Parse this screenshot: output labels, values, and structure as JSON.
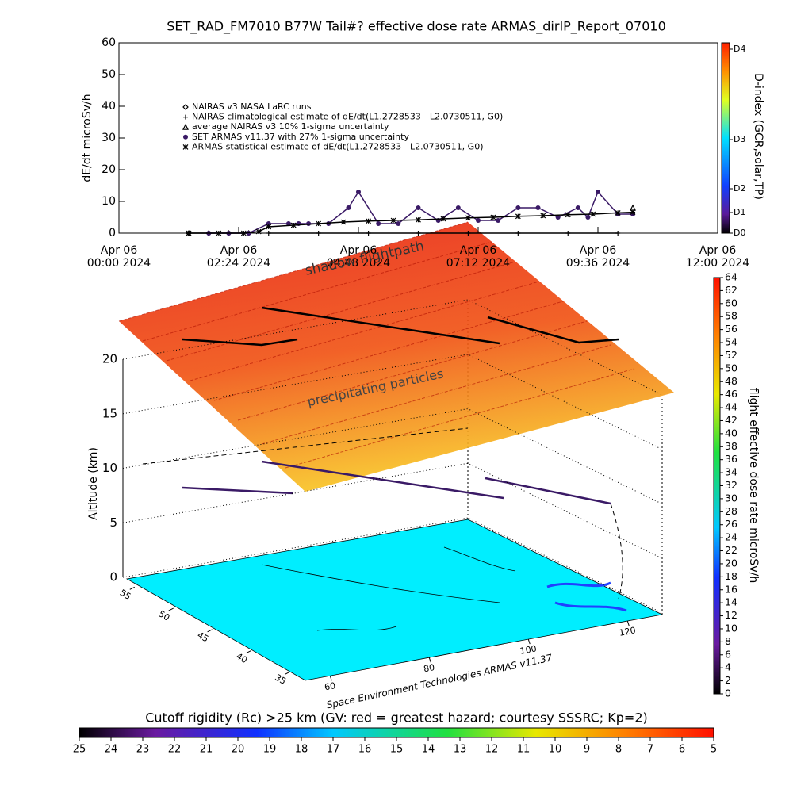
{
  "chart_data": [
    {
      "type": "scatter",
      "title": "SET_RAD_FM7010  B77W Tail#? effective dose rate ARMAS_dirIP_Report_07010",
      "ylabel": "dE/dt microSv/h",
      "xlim": [
        0,
        12
      ],
      "ylim": [
        0,
        60
      ],
      "xticks": [
        {
          "value": 0,
          "label": "Apr 06\n00:00 2024"
        },
        {
          "value": 2.4,
          "label": "Apr 06\n02:24 2024"
        },
        {
          "value": 4.8,
          "label": "Apr 06\n04:48 2024"
        },
        {
          "value": 7.2,
          "label": "Apr 06\n07:12 2024"
        },
        {
          "value": 9.6,
          "label": "Apr 06\n09:36 2024"
        },
        {
          "value": 12,
          "label": "Apr 06\n12:00 2024"
        }
      ],
      "yticks": [
        0,
        10,
        20,
        30,
        40,
        50,
        60
      ],
      "y2label": "D-index (GCR,solar,TP)",
      "y2ticks": [
        {
          "value": 0,
          "label": "D0"
        },
        {
          "value": 6.5,
          "label": "D1"
        },
        {
          "value": 14,
          "label": "D2"
        },
        {
          "value": 29.5,
          "label": "D3"
        },
        {
          "value": 58,
          "label": "D4"
        }
      ],
      "series": [
        {
          "name": "NAIRAS v3 NASA LaRC runs",
          "marker": "diamond",
          "color": "#000000",
          "x": [
            1.4,
            1.8,
            2.2,
            2.6
          ],
          "values": [
            0,
            0,
            0,
            0
          ]
        },
        {
          "name": "NAIRAS climatological estimate of dE/dt(L1.2728533 - L2.0730511, G0)",
          "marker": "plus",
          "color": "#000000",
          "x": [
            3.0,
            4.0,
            5.0,
            6.0,
            7.0,
            8.0,
            9.0,
            10.0
          ],
          "values": [
            0,
            0,
            0,
            0,
            0,
            0,
            0,
            0
          ]
        },
        {
          "name": "average NAIRAS v3 10% 1-sigma uncertainty",
          "marker": "triangle",
          "color": "#000000",
          "x": [
            10.3
          ],
          "values": [
            8
          ]
        },
        {
          "name": "SET ARMAS v11.37 with 27% 1-sigma uncertainty",
          "marker": "circle",
          "color": "#3a1a66",
          "x": [
            1.8,
            2.2,
            2.6,
            3.0,
            3.4,
            3.6,
            3.8,
            4.2,
            4.6,
            4.8,
            5.2,
            5.6,
            6.0,
            6.4,
            6.8,
            7.2,
            7.6,
            8.0,
            8.4,
            8.8,
            9.2,
            9.4,
            9.6,
            10.0,
            10.3
          ],
          "values": [
            0,
            0,
            0,
            3,
            3,
            3,
            3,
            3,
            8,
            13,
            3,
            3,
            8,
            4,
            8,
            4,
            4,
            8,
            8,
            5,
            8,
            5,
            13,
            6,
            6
          ]
        },
        {
          "name": "ARMAS statistical estimate of dE/dt(L1.2728533 - L2.0730511, G0)",
          "marker": "asterisk",
          "color": "#000000",
          "x": [
            1.4,
            2.0,
            2.5,
            2.8,
            3.0,
            3.5,
            4.0,
            4.5,
            5.0,
            5.5,
            6.0,
            6.5,
            7.0,
            7.5,
            8.0,
            8.5,
            9.0,
            9.5,
            10.0,
            10.3
          ],
          "values": [
            0,
            0,
            0,
            0.5,
            2,
            2.5,
            3,
            3.5,
            3.8,
            4,
            4.2,
            4.5,
            4.8,
            5,
            5.3,
            5.5,
            5.8,
            6,
            6.4,
            6.6
          ]
        }
      ]
    },
    {
      "type": "surface3d",
      "zlabel": "Altitude (km)",
      "zlim": [
        0,
        20
      ],
      "zticks": [
        0,
        5,
        10,
        15,
        20
      ],
      "latlim": [
        33,
        56
      ],
      "latticks": [
        35,
        40,
        45,
        50,
        55
      ],
      "lonlim": [
        55,
        127
      ],
      "lonticks": [
        60,
        80,
        100,
        120
      ],
      "annotations": [
        "shadow flightpath",
        "precipitating particles"
      ],
      "credit": "Space Environment Technologies ARMAS v11.37",
      "colorbar": {
        "label": "flight effective dose rate microSv/h",
        "lim": [
          0,
          64
        ],
        "ticks": [
          0,
          2,
          4,
          6,
          8,
          10,
          12,
          14,
          16,
          18,
          20,
          22,
          24,
          26,
          28,
          30,
          32,
          34,
          36,
          38,
          40,
          42,
          44,
          46,
          48,
          50,
          52,
          54,
          56,
          58,
          60,
          62,
          64
        ]
      },
      "map_colorbar": {
        "label": "Cutoff rigidity (Rc) >25 km (GV: red = greatest hazard; courtesy SSSRC; Kp=2)",
        "lim": [
          25,
          5
        ],
        "ticks": [
          25,
          24,
          23,
          22,
          21,
          20,
          19,
          18,
          17,
          16,
          15,
          14,
          13,
          12,
          11,
          10,
          9,
          8,
          7,
          6,
          5
        ]
      }
    }
  ]
}
